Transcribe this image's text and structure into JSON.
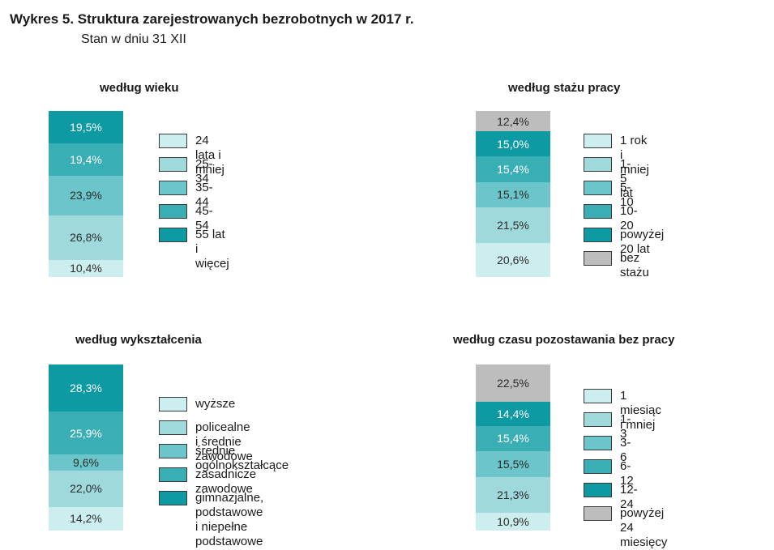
{
  "header": {
    "title": "Wykres 5. Struktura zarejestrowanych bezrobotnych w 2017 r.",
    "subtitle": "Stan w dniu 31 XII"
  },
  "colors": {
    "c1": "#cdeeee",
    "c2": "#9fd9dc",
    "c3": "#6cc5ca",
    "c4": "#3aaeb5",
    "c5": "#0d9aa3",
    "grey": "#bdbdbd"
  },
  "chart_data": [
    {
      "type": "bar",
      "stacked": true,
      "title": "według wieku",
      "unit": "%",
      "categories": [
        "24 lata i mniej",
        "25-34",
        "35-44",
        "45-54",
        "55 lat i więcej"
      ],
      "values": [
        10.4,
        26.8,
        23.9,
        19.4,
        19.5
      ],
      "value_labels": [
        "10,4%",
        "26,8%",
        "23,9%",
        "19,4%",
        "19,5%"
      ],
      "color_keys": [
        "c1",
        "c2",
        "c3",
        "c4",
        "c5"
      ],
      "legend": [
        "24 lata i mniej",
        "25-34",
        "35-44",
        "45-54",
        "55 lat i więcej"
      ],
      "legend_color_keys": [
        "c1",
        "c2",
        "c3",
        "c4",
        "c5"
      ]
    },
    {
      "type": "bar",
      "stacked": true,
      "title": "według stażu pracy",
      "unit": "%",
      "categories": [
        "1 rok i mniej",
        "1-5 lat",
        "5-10",
        "10-20",
        "powyżej 20 lat",
        "bez stażu"
      ],
      "values": [
        20.6,
        21.5,
        15.1,
        15.4,
        15.0,
        12.4
      ],
      "value_labels": [
        "20,6%",
        "21,5%",
        "15,1%",
        "15,4%",
        "15,0%",
        "12,4%"
      ],
      "color_keys": [
        "c1",
        "c2",
        "c3",
        "c4",
        "c5",
        "grey"
      ],
      "legend": [
        "1 rok i mniej",
        "1-5 lat",
        "5-10",
        "10-20",
        "powyżej 20 lat",
        "bez stażu"
      ],
      "legend_color_keys": [
        "c1",
        "c2",
        "c3",
        "c4",
        "c5",
        "grey"
      ]
    },
    {
      "type": "bar",
      "stacked": true,
      "title": "według wykształcenia",
      "unit": "%",
      "categories": [
        "wyższe",
        "policealne i średnie zawodowe",
        "średnie ogólnokształcące",
        "zasadnicze zawodowe",
        "gimnazjalne, podstawowe i niepełne podstawowe"
      ],
      "values": [
        14.2,
        22.0,
        9.6,
        25.9,
        28.3
      ],
      "value_labels": [
        "14,2%",
        "22,0%",
        "9,6%",
        "25,9%",
        "28,3%"
      ],
      "color_keys": [
        "c1",
        "c2",
        "c3",
        "c4",
        "c5"
      ],
      "legend": [
        "wyższe",
        "policealne i średnie zawodowe",
        "średnie ogólnokształcące",
        "zasadnicze zawodowe",
        "gimnazjalne, podstawowe\ni niepełne podstawowe"
      ],
      "legend_color_keys": [
        "c1",
        "c2",
        "c3",
        "c4",
        "c5"
      ]
    },
    {
      "type": "bar",
      "stacked": true,
      "title": "według czasu pozostawania bez pracy",
      "unit": "%",
      "categories": [
        "1 miesiąc i mniej",
        "1-3",
        "3-6",
        "6-12",
        "12-24",
        "powyżej 24 miesięcy"
      ],
      "values": [
        10.9,
        21.3,
        15.5,
        15.4,
        14.4,
        22.5
      ],
      "value_labels": [
        "10,9%",
        "21,3%",
        "15,5%",
        "15,4%",
        "14,4%",
        "22,5%"
      ],
      "color_keys": [
        "c1",
        "c2",
        "c3",
        "c4",
        "c5",
        "grey"
      ],
      "legend": [
        "1 miesiąc i mniej",
        "1-3",
        "3-6",
        "6-12",
        "12-24",
        "powyżej 24 miesięcy"
      ],
      "legend_color_keys": [
        "c1",
        "c2",
        "c3",
        "c4",
        "c5",
        "grey"
      ]
    }
  ]
}
